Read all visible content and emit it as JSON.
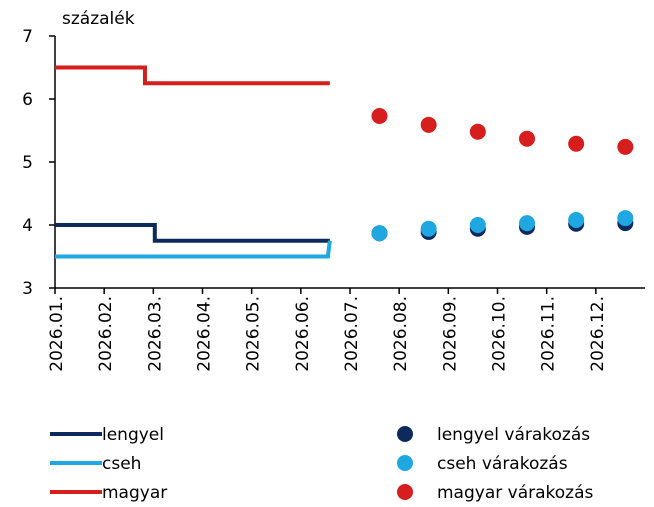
{
  "chart_data": {
    "type": "line",
    "y_unit_label": "százalék",
    "xlim": [
      0,
      12
    ],
    "xticks": [
      {
        "value": 0,
        "label": "2026.01."
      },
      {
        "value": 1,
        "label": "2026.02."
      },
      {
        "value": 2,
        "label": "2026.03."
      },
      {
        "value": 3,
        "label": "2026.04."
      },
      {
        "value": 4,
        "label": "2026.05."
      },
      {
        "value": 5,
        "label": "2026.06."
      },
      {
        "value": 6,
        "label": "2026.07."
      },
      {
        "value": 7,
        "label": "2026.08."
      },
      {
        "value": 8,
        "label": "2026.09."
      },
      {
        "value": 9,
        "label": "2026.10."
      },
      {
        "value": 10,
        "label": "2026.11."
      },
      {
        "value": 11,
        "label": "2026.12."
      }
    ],
    "ylim": [
      3,
      7
    ],
    "yticks": [
      3,
      4,
      5,
      6,
      7
    ],
    "series": [
      {
        "name": "lengyel",
        "color": "#0d2a5c",
        "style": "line",
        "x": [
          0,
          2.03,
          2.03,
          5.59
        ],
        "values": [
          4,
          4,
          3.75,
          3.75
        ]
      },
      {
        "name": "cseh",
        "color": "#1ea7e1",
        "style": "line",
        "x": [
          0,
          5.55,
          5.59
        ],
        "values": [
          3.5,
          3.5,
          3.75
        ]
      },
      {
        "name": "magyar",
        "color": "#d61e1e",
        "style": "line",
        "x": [
          0,
          1.83,
          1.83,
          5.59
        ],
        "values": [
          6.5,
          6.5,
          6.25,
          6.25
        ]
      },
      {
        "name": "lengyel várakozás",
        "color": "#0d2a5c",
        "style": "dots",
        "x": [
          6.6,
          7.6,
          8.6,
          9.6,
          10.6,
          11.6
        ],
        "values": [
          3.87,
          3.89,
          3.94,
          3.97,
          4.02,
          4.03
        ]
      },
      {
        "name": "cseh várakozás",
        "color": "#1ea7e1",
        "style": "dots",
        "x": [
          6.6,
          7.6,
          8.6,
          9.6,
          10.6,
          11.6
        ],
        "values": [
          3.87,
          3.94,
          4.0,
          4.03,
          4.08,
          4.11
        ]
      },
      {
        "name": "magyar várakozás",
        "color": "#d61e1e",
        "style": "dots",
        "x": [
          6.6,
          7.6,
          8.6,
          9.6,
          10.6,
          11.6
        ],
        "values": [
          5.73,
          5.59,
          5.48,
          5.37,
          5.29,
          5.24
        ]
      }
    ]
  }
}
